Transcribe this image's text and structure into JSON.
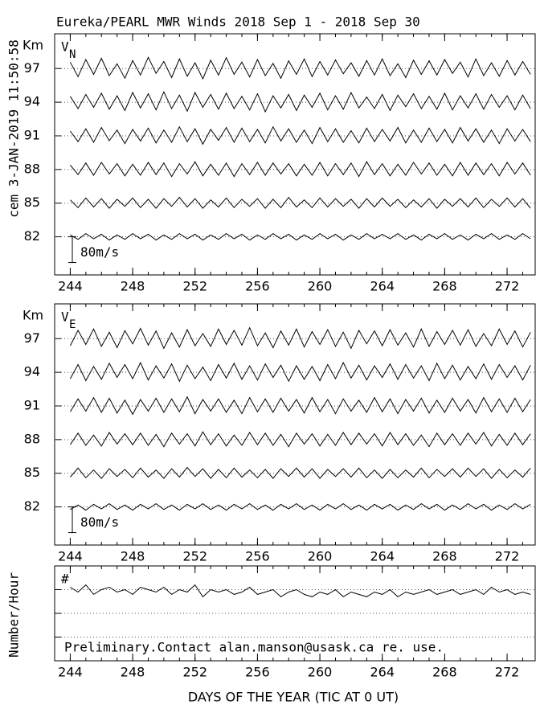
{
  "chart_data": [
    {
      "type": "line",
      "title": "Eureka/PEARL MWR Winds 2018 Sep  1 - 2018 Sep 30",
      "side_text": "cem 3-JAN-2019 11:50:58",
      "unit_label": "Km",
      "panel_label": "V",
      "panel_sub": "N",
      "xlim": [
        243,
        273.8
      ],
      "xticks": [
        244,
        248,
        252,
        256,
        260,
        264,
        268,
        272
      ],
      "ylim": [
        78.6,
        100.1
      ],
      "yticks": [
        97,
        94,
        91,
        88,
        85,
        82
      ],
      "grid": true,
      "scale_bar": {
        "value": 80,
        "label": "80m/s"
      },
      "x": [
        244,
        244.5,
        245,
        245.5,
        246,
        246.5,
        247,
        247.5,
        248,
        248.5,
        249,
        249.5,
        250,
        250.5,
        251,
        251.5,
        252,
        252.5,
        253,
        253.5,
        254,
        254.5,
        255,
        255.5,
        256,
        256.5,
        257,
        257.5,
        258,
        258.5,
        259,
        259.5,
        260,
        260.5,
        261,
        261.5,
        262,
        262.5,
        263,
        263.5,
        264,
        264.5,
        265,
        265.5,
        266,
        266.5,
        267,
        267.5,
        268,
        268.5,
        269,
        269.5,
        270,
        270.5,
        271,
        271.5,
        272,
        272.5,
        273,
        273.5
      ],
      "series": [
        {
          "color": "#000000",
          "values": [
            20,
            -25,
            28,
            -18,
            32,
            -22,
            15,
            -30,
            25,
            -20,
            35,
            -15,
            22,
            -28,
            30,
            -24,
            18,
            -32,
            26,
            -20,
            34,
            -18,
            20,
            -26,
            28,
            -22,
            16,
            -30,
            24,
            -18,
            30,
            -25,
            22,
            -20,
            27,
            -16,
            18,
            -24,
            25,
            -20,
            30,
            -22,
            15,
            -28,
            26,
            -18,
            24,
            -20,
            28,
            -15,
            20,
            -26,
            30,
            -22,
            18,
            -24,
            25,
            -20,
            22,
            -18
          ]
        },
        {
          "color": "#000000",
          "values": [
            18,
            -20,
            24,
            -16,
            28,
            -22,
            20,
            -26,
            30,
            -18,
            26,
            -24,
            32,
            -20,
            22,
            -28,
            30,
            -16,
            24,
            -22,
            28,
            -20,
            18,
            -24,
            26,
            -30,
            20,
            -18,
            24,
            -26,
            22,
            -16,
            28,
            -24,
            20,
            -22,
            30,
            -18,
            16,
            -20,
            24,
            -26,
            22,
            -14,
            26,
            -20,
            18,
            -22,
            28,
            -24,
            20,
            -18,
            26,
            -22,
            24,
            -16,
            20,
            -24,
            22,
            -20
          ]
        },
        {
          "color": "#000000",
          "values": [
            15,
            -18,
            22,
            -20,
            26,
            -15,
            18,
            -24,
            20,
            -16,
            24,
            -22,
            18,
            -20,
            28,
            -18,
            22,
            -26,
            20,
            -14,
            26,
            -20,
            24,
            -18,
            20,
            -22,
            28,
            -16,
            22,
            -20,
            18,
            -24,
            26,
            -18,
            22,
            -20,
            16,
            -22,
            24,
            -18,
            20,
            -16,
            26,
            -22,
            18,
            -20,
            24,
            -18,
            20,
            -22,
            26,
            -16,
            22,
            -20,
            18,
            -24,
            22,
            -16,
            20,
            -18
          ]
        },
        {
          "color": "#000000",
          "values": [
            14,
            -16,
            20,
            -18,
            22,
            -14,
            18,
            -20,
            16,
            -18,
            22,
            -16,
            20,
            -22,
            18,
            -14,
            24,
            -20,
            16,
            -18,
            20,
            -22,
            18,
            -16,
            22,
            -18,
            20,
            -14,
            18,
            -20,
            16,
            -18,
            22,
            -20,
            18,
            -16,
            20,
            -22,
            24,
            -16,
            18,
            -20,
            16,
            -18,
            22,
            -14,
            20,
            -18,
            16,
            -20,
            22,
            -18,
            20,
            -16,
            18,
            -20,
            22,
            -14,
            20,
            -18
          ]
        },
        {
          "color": "#000000",
          "values": [
            10,
            -14,
            16,
            -12,
            14,
            -16,
            12,
            -10,
            16,
            -14,
            12,
            -16,
            14,
            -10,
            18,
            -12,
            14,
            -16,
            10,
            -12,
            16,
            -14,
            12,
            -10,
            14,
            -16,
            12,
            -14,
            18,
            -12,
            10,
            -14,
            16,
            -12,
            14,
            -10,
            12,
            -16,
            14,
            -12,
            16,
            -10,
            12,
            -14,
            10,
            -12,
            14,
            -16,
            12,
            -10,
            14,
            -12,
            16,
            -14,
            12,
            -10,
            16,
            -12,
            14,
            -16
          ]
        },
        {
          "color": "#000000",
          "values": [
            6,
            -8,
            10,
            -6,
            8,
            -10,
            6,
            -8,
            10,
            -6,
            8,
            -10,
            6,
            -8,
            10,
            -6,
            8,
            -10,
            6,
            -8,
            10,
            -6,
            8,
            -10,
            6,
            -8,
            10,
            -6,
            8,
            -10,
            6,
            -8,
            10,
            -6,
            8,
            -10,
            6,
            -8,
            10,
            -6,
            8,
            -6,
            10,
            -8,
            6,
            -10,
            8,
            -6,
            10,
            -8,
            6,
            -10,
            8,
            -6,
            10,
            -8,
            6,
            -8,
            10,
            -6
          ]
        }
      ]
    },
    {
      "type": "line",
      "unit_label": "Km",
      "panel_label": "V",
      "panel_sub": "E",
      "xlim": [
        243,
        273.8
      ],
      "xticks": [
        244,
        248,
        252,
        256,
        260,
        264,
        268,
        272
      ],
      "ylim": [
        78.6,
        100.1
      ],
      "yticks": [
        97,
        94,
        91,
        88,
        85,
        82
      ],
      "grid": true,
      "scale_bar": {
        "value": 80,
        "label": "80m/s"
      },
      "x": [
        244,
        244.5,
        245,
        245.5,
        246,
        246.5,
        247,
        247.5,
        248,
        248.5,
        249,
        249.5,
        250,
        250.5,
        251,
        251.5,
        252,
        252.5,
        253,
        253.5,
        254,
        254.5,
        255,
        255.5,
        256,
        256.5,
        257,
        257.5,
        258,
        258.5,
        259,
        259.5,
        260,
        260.5,
        261,
        261.5,
        262,
        262.5,
        263,
        263.5,
        264,
        264.5,
        265,
        265.5,
        266,
        266.5,
        267,
        267.5,
        268,
        268.5,
        269,
        269.5,
        270,
        270.5,
        271,
        271.5,
        272,
        272.5,
        273,
        273.5
      ],
      "series": [
        {
          "color": "#000000",
          "values": [
            -22,
            26,
            -18,
            30,
            -24,
            20,
            -28,
            25,
            -16,
            32,
            -20,
            24,
            -30,
            18,
            -26,
            28,
            -22,
            16,
            -24,
            30,
            -18,
            26,
            -20,
            34,
            -22,
            18,
            -28,
            24,
            -20,
            30,
            -26,
            22,
            -18,
            28,
            -24,
            20,
            -30,
            26,
            -16,
            24,
            -22,
            28,
            -20,
            18,
            -26,
            30,
            -24,
            22,
            -18,
            26,
            -20,
            28,
            -24,
            16,
            -22,
            30,
            -18,
            24,
            -26,
            20
          ]
        },
        {
          "color": "#000000",
          "values": [
            -20,
            24,
            -26,
            18,
            -22,
            28,
            -16,
            24,
            -20,
            30,
            -24,
            20,
            -18,
            26,
            -28,
            22,
            -20,
            16,
            -26,
            24,
            -18,
            28,
            -22,
            20,
            -24,
            26,
            -16,
            22,
            -28,
            20,
            -22,
            18,
            -26,
            24,
            -20,
            30,
            -18,
            22,
            -24,
            20,
            -16,
            26,
            -22,
            24,
            -18,
            20,
            -26,
            28,
            -20,
            22,
            -24,
            18,
            -20,
            26,
            -22,
            24,
            -16,
            20,
            -24,
            22
          ]
        },
        {
          "color": "#000000",
          "values": [
            -18,
            22,
            -16,
            26,
            -20,
            24,
            -22,
            18,
            -26,
            20,
            -16,
            24,
            -20,
            22,
            -18,
            28,
            -24,
            20,
            -16,
            22,
            -20,
            18,
            -24,
            26,
            -18,
            22,
            -20,
            24,
            -16,
            20,
            -22,
            26,
            -18,
            20,
            -24,
            22,
            -16,
            18,
            -20,
            26,
            -18,
            22,
            -24,
            20,
            -16,
            24,
            -22,
            18,
            -20,
            24,
            -16,
            20,
            -22,
            26,
            -18,
            22,
            -20,
            24,
            -18,
            20
          ]
        },
        {
          "color": "#000000",
          "values": [
            -16,
            20,
            -18,
            14,
            -20,
            22,
            -14,
            18,
            -16,
            20,
            -18,
            16,
            -22,
            20,
            -14,
            18,
            -20,
            24,
            -16,
            18,
            -20,
            14,
            -18,
            22,
            -16,
            20,
            -18,
            16,
            -22,
            20,
            -14,
            18,
            -20,
            16,
            -18,
            22,
            -16,
            20,
            -14,
            18,
            -20,
            22,
            -16,
            18,
            -18,
            14,
            -22,
            20,
            -16,
            18,
            -18,
            20,
            -14,
            22,
            -20,
            16,
            -18,
            20,
            -16,
            18
          ]
        },
        {
          "color": "#000000",
          "values": [
            -12,
            16,
            -14,
            10,
            -16,
            14,
            -10,
            12,
            -14,
            16,
            -12,
            10,
            -16,
            14,
            -12,
            18,
            -10,
            14,
            -16,
            12,
            -14,
            16,
            -12,
            10,
            -14,
            12,
            -16,
            14,
            -10,
            16,
            -12,
            14,
            -16,
            12,
            -10,
            14,
            -12,
            16,
            -14,
            10,
            -16,
            12,
            -14,
            10,
            -12,
            16,
            -14,
            12,
            -10,
            14,
            -12,
            16,
            -10,
            14,
            -16,
            12,
            -14,
            10,
            -12,
            16
          ]
        },
        {
          "color": "#000000",
          "values": [
            -8,
            6,
            -10,
            8,
            -6,
            10,
            -8,
            6,
            -10,
            8,
            -6,
            10,
            -8,
            6,
            -10,
            8,
            -6,
            10,
            -8,
            6,
            -10,
            8,
            -6,
            10,
            -8,
            6,
            -10,
            8,
            -6,
            10,
            -8,
            6,
            -10,
            8,
            -6,
            10,
            -8,
            6,
            -10,
            8,
            -6,
            8,
            -10,
            6,
            -8,
            10,
            -6,
            8,
            -10,
            6,
            -8,
            10,
            -6,
            8,
            -10,
            6,
            -8,
            10,
            -6,
            8
          ]
        }
      ]
    },
    {
      "type": "line",
      "y_label": "Number/Hour",
      "panel_label": "#",
      "x_label": "DAYS OF THE YEAR (TIC AT 0 UT)",
      "annotation": "Preliminary.Contact alan.manson@usask.ca re. use.",
      "xlim": [
        243,
        273.8
      ],
      "xticks": [
        244,
        248,
        252,
        256,
        260,
        264,
        268,
        272
      ],
      "ylim": [
        0,
        4
      ],
      "grid_lines": [
        1,
        2,
        3
      ],
      "x": [
        244,
        244.5,
        245,
        245.5,
        246,
        246.5,
        247,
        247.5,
        248,
        248.5,
        249,
        249.5,
        250,
        250.5,
        251,
        251.5,
        252,
        252.5,
        253,
        253.5,
        254,
        254.5,
        255,
        255.5,
        256,
        256.5,
        257,
        257.5,
        258,
        258.5,
        259,
        259.5,
        260,
        260.5,
        261,
        261.5,
        262,
        262.5,
        263,
        263.5,
        264,
        264.5,
        265,
        265.5,
        266,
        266.5,
        267,
        267.5,
        268,
        268.5,
        269,
        269.5,
        270,
        270.5,
        271,
        271.5,
        272,
        272.5,
        273,
        273.5
      ],
      "series": [
        {
          "color": "#000000",
          "values": [
            3.1,
            2.9,
            3.2,
            2.8,
            3.0,
            3.1,
            2.9,
            3.0,
            2.8,
            3.1,
            3.0,
            2.9,
            3.1,
            2.8,
            3.0,
            2.9,
            3.2,
            2.7,
            3.0,
            2.9,
            3.0,
            2.8,
            2.9,
            3.1,
            2.8,
            2.9,
            3.0,
            2.7,
            2.9,
            3.0,
            2.8,
            2.7,
            2.9,
            2.8,
            3.0,
            2.7,
            2.9,
            2.8,
            2.7,
            2.9,
            2.8,
            3.0,
            2.7,
            2.9,
            2.8,
            2.9,
            3.0,
            2.8,
            2.9,
            3.0,
            2.8,
            2.9,
            3.0,
            2.8,
            3.1,
            2.9,
            3.0,
            2.8,
            2.9,
            2.8
          ]
        }
      ]
    }
  ]
}
